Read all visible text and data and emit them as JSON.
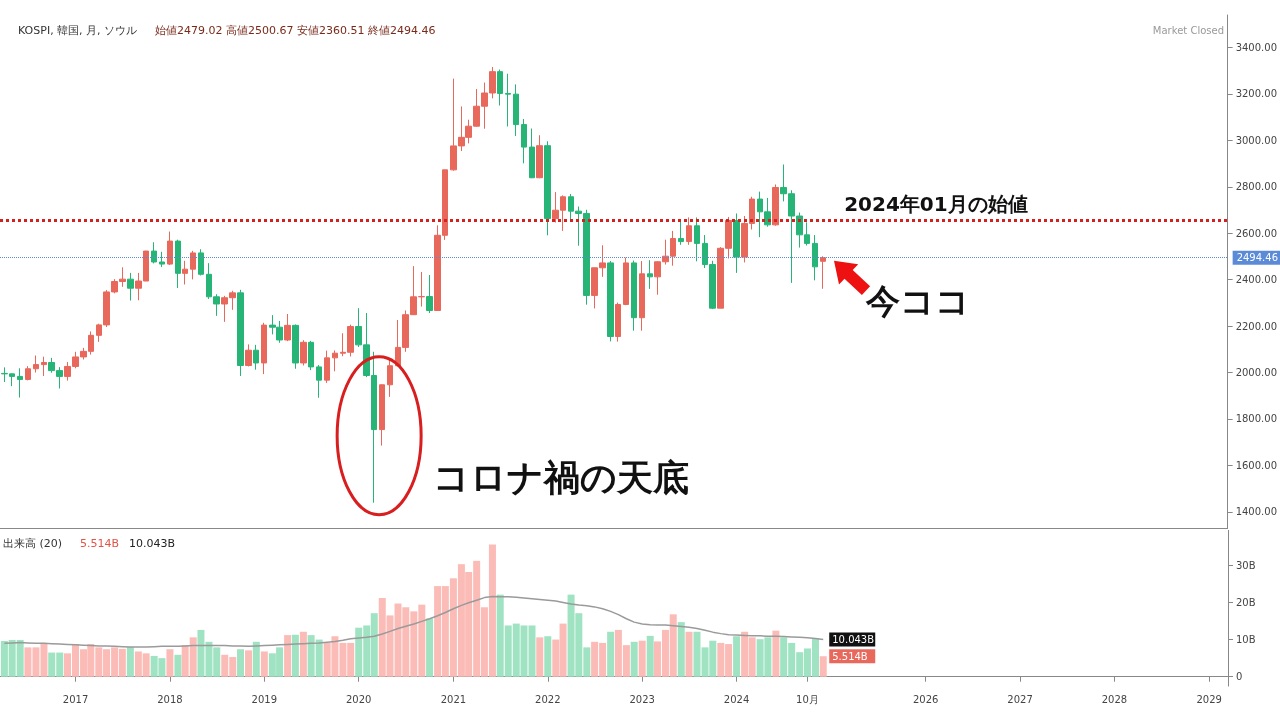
{
  "chart_data": [
    {
      "type": "candlestick",
      "title": "KOSPI, 韓国, 月, ソウル",
      "subtitle": "始値2479.02 高値2500.67 安値2360.51 終値2494.46",
      "x": [
        "2016-04",
        "2016-05",
        "2016-06",
        "2016-07",
        "2016-08",
        "2016-09",
        "2016-10",
        "2016-11",
        "2016-12",
        "2017-01",
        "2017-02",
        "2017-03",
        "2017-04",
        "2017-05",
        "2017-06",
        "2017-07",
        "2017-08",
        "2017-09",
        "2017-10",
        "2017-11",
        "2017-12",
        "2018-01",
        "2018-02",
        "2018-03",
        "2018-04",
        "2018-05",
        "2018-06",
        "2018-07",
        "2018-08",
        "2018-09",
        "2018-10",
        "2018-11",
        "2018-12",
        "2019-01",
        "2019-02",
        "2019-03",
        "2019-04",
        "2019-05",
        "2019-06",
        "2019-07",
        "2019-08",
        "2019-09",
        "2019-10",
        "2019-11",
        "2019-12",
        "2020-01",
        "2020-02",
        "2020-03",
        "2020-04",
        "2020-05",
        "2020-06",
        "2020-07",
        "2020-08",
        "2020-09",
        "2020-10",
        "2020-11",
        "2020-12",
        "2021-01",
        "2021-02",
        "2021-03",
        "2021-04",
        "2021-05",
        "2021-06",
        "2021-07",
        "2021-08",
        "2021-09",
        "2021-10",
        "2021-11",
        "2021-12",
        "2022-01",
        "2022-02",
        "2022-03",
        "2022-04",
        "2022-05",
        "2022-06",
        "2022-07",
        "2022-08",
        "2022-09",
        "2022-10",
        "2022-11",
        "2022-12",
        "2023-01",
        "2023-02",
        "2023-03",
        "2023-04",
        "2023-05",
        "2023-06",
        "2023-07",
        "2023-08",
        "2023-09",
        "2023-10",
        "2023-11",
        "2023-12",
        "2024-01",
        "2024-02",
        "2024-03",
        "2024-04",
        "2024-05",
        "2024-06",
        "2024-07",
        "2024-08",
        "2024-09",
        "2024-10",
        "2024-11",
        "2024-12"
      ],
      "ohlc": [
        [
          1996,
          2022,
          1959,
          1994
        ],
        [
          1994,
          1996,
          1941,
          1983
        ],
        [
          1983,
          2018,
          1892,
          1970
        ],
        [
          1970,
          2027,
          1966,
          2016
        ],
        [
          2016,
          2073,
          2000,
          2034
        ],
        [
          2034,
          2068,
          1985,
          2043
        ],
        [
          2043,
          2063,
          1999,
          2008
        ],
        [
          2008,
          2023,
          1931,
          1983
        ],
        [
          1983,
          2045,
          1965,
          2026
        ],
        [
          2026,
          2089,
          2018,
          2067
        ],
        [
          2067,
          2106,
          2056,
          2091
        ],
        [
          2091,
          2177,
          2077,
          2160
        ],
        [
          2160,
          2210,
          2132,
          2205
        ],
        [
          2205,
          2355,
          2196,
          2347
        ],
        [
          2347,
          2402,
          2341,
          2392
        ],
        [
          2392,
          2453,
          2369,
          2402
        ],
        [
          2402,
          2429,
          2310,
          2363
        ],
        [
          2363,
          2429,
          2311,
          2394
        ],
        [
          2394,
          2524,
          2394,
          2523
        ],
        [
          2523,
          2561,
          2470,
          2476
        ],
        [
          2476,
          2520,
          2454,
          2467
        ],
        [
          2467,
          2607,
          2463,
          2566
        ],
        [
          2566,
          2572,
          2364,
          2427
        ],
        [
          2427,
          2481,
          2379,
          2445
        ],
        [
          2445,
          2524,
          2401,
          2515
        ],
        [
          2515,
          2531,
          2418,
          2423
        ],
        [
          2423,
          2471,
          2317,
          2326
        ],
        [
          2326,
          2337,
          2244,
          2295
        ],
        [
          2295,
          2330,
          2218,
          2322
        ],
        [
          2322,
          2352,
          2270,
          2343
        ],
        [
          2343,
          2356,
          1985,
          2030
        ],
        [
          2030,
          2121,
          2026,
          2096
        ],
        [
          2096,
          2119,
          2012,
          2041
        ],
        [
          2041,
          2214,
          1993,
          2204
        ],
        [
          2204,
          2247,
          2164,
          2195
        ],
        [
          2195,
          2222,
          2128,
          2140
        ],
        [
          2140,
          2252,
          2135,
          2203
        ],
        [
          2203,
          2207,
          2016,
          2041
        ],
        [
          2041,
          2139,
          2030,
          2130
        ],
        [
          2130,
          2136,
          2010,
          2024
        ],
        [
          2024,
          2032,
          1891,
          1967
        ],
        [
          1967,
          2094,
          1955,
          2063
        ],
        [
          2063,
          2095,
          2005,
          2083
        ],
        [
          2083,
          2169,
          2070,
          2087
        ],
        [
          2087,
          2206,
          2069,
          2198
        ],
        [
          2198,
          2277,
          2110,
          2119
        ],
        [
          2119,
          2256,
          1980,
          1987
        ],
        [
          1987,
          2089,
          1439,
          1754
        ],
        [
          1754,
          1949,
          1685,
          1947
        ],
        [
          1947,
          2056,
          1895,
          2029
        ],
        [
          2029,
          2226,
          2026,
          2108
        ],
        [
          2108,
          2267,
          2089,
          2249
        ],
        [
          2249,
          2458,
          2249,
          2326
        ],
        [
          2326,
          2433,
          2284,
          2327
        ],
        [
          2327,
          2420,
          2256,
          2267
        ],
        [
          2267,
          2634,
          2267,
          2591
        ],
        [
          2591,
          2873,
          2571,
          2873
        ],
        [
          2873,
          3266,
          2869,
          2976
        ],
        [
          2976,
          3146,
          2954,
          3013
        ],
        [
          3013,
          3089,
          2987,
          3061
        ],
        [
          3061,
          3221,
          3059,
          3147
        ],
        [
          3147,
          3249,
          3050,
          3204
        ],
        [
          3204,
          3316,
          3181,
          3296
        ],
        [
          3296,
          3305,
          3150,
          3202
        ],
        [
          3202,
          3287,
          3060,
          3199
        ],
        [
          3199,
          3241,
          3019,
          3068
        ],
        [
          3068,
          3092,
          2901,
          2971
        ],
        [
          2971,
          3051,
          2837,
          2839
        ],
        [
          2839,
          3022,
          2837,
          2977
        ],
        [
          2977,
          2996,
          2591,
          2663
        ],
        [
          2663,
          2777,
          2646,
          2699
        ],
        [
          2699,
          2763,
          2610,
          2757
        ],
        [
          2757,
          2769,
          2661,
          2695
        ],
        [
          2695,
          2715,
          2546,
          2685
        ],
        [
          2685,
          2701,
          2292,
          2332
        ],
        [
          2332,
          2452,
          2276,
          2451
        ],
        [
          2451,
          2548,
          2412,
          2472
        ],
        [
          2472,
          2480,
          2134,
          2155
        ],
        [
          2155,
          2301,
          2133,
          2293
        ],
        [
          2293,
          2495,
          2290,
          2472
        ],
        [
          2472,
          2482,
          2180,
          2236
        ],
        [
          2236,
          2480,
          2180,
          2425
        ],
        [
          2425,
          2484,
          2360,
          2412
        ],
        [
          2412,
          2480,
          2335,
          2477
        ],
        [
          2477,
          2572,
          2465,
          2501
        ],
        [
          2501,
          2610,
          2460,
          2577
        ],
        [
          2577,
          2650,
          2550,
          2564
        ],
        [
          2564,
          2668,
          2550,
          2632
        ],
        [
          2632,
          2668,
          2479,
          2556
        ],
        [
          2556,
          2592,
          2450,
          2465
        ],
        [
          2465,
          2481,
          2273,
          2277
        ],
        [
          2277,
          2540,
          2277,
          2535
        ],
        [
          2535,
          2670,
          2491,
          2655
        ],
        [
          2655,
          2685,
          2429,
          2497
        ],
        [
          2497,
          2674,
          2474,
          2642
        ],
        [
          2642,
          2757,
          2616,
          2747
        ],
        [
          2747,
          2779,
          2583,
          2692
        ],
        [
          2692,
          2752,
          2628,
          2636
        ],
        [
          2636,
          2810,
          2632,
          2797
        ],
        [
          2797,
          2896,
          2737,
          2770
        ],
        [
          2770,
          2785,
          2386,
          2674
        ],
        [
          2674,
          2689,
          2538,
          2593
        ],
        [
          2593,
          2647,
          2547,
          2556
        ],
        [
          2556,
          2592,
          2397,
          2455
        ],
        [
          2479.02,
          2500.67,
          2360.51,
          2494.46
        ]
      ],
      "colors": [
        "#26b576",
        "#26b576",
        "#26b576",
        "#e8685c",
        "#e8685c",
        "#e8685c",
        "#26b576",
        "#26b576",
        "#e8685c",
        "#e8685c",
        "#e8685c",
        "#e8685c",
        "#e8685c",
        "#e8685c",
        "#e8685c",
        "#e8685c",
        "#26b576",
        "#e8685c",
        "#e8685c",
        "#26b576",
        "#26b576",
        "#e8685c",
        "#26b576",
        "#e8685c",
        "#e8685c",
        "#26b576",
        "#26b576",
        "#26b576",
        "#e8685c",
        "#e8685c",
        "#26b576",
        "#e8685c",
        "#26b576",
        "#e8685c",
        "#26b576",
        "#26b576",
        "#e8685c",
        "#26b576",
        "#e8685c",
        "#26b576",
        "#26b576",
        "#e8685c",
        "#e8685c",
        "#e8685c",
        "#e8685c",
        "#26b576",
        "#26b576",
        "#26b576",
        "#e8685c",
        "#e8685c",
        "#e8685c",
        "#e8685c",
        "#e8685c",
        "#e8685c",
        "#26b576",
        "#e8685c",
        "#e8685c",
        "#e8685c",
        "#e8685c",
        "#e8685c",
        "#e8685c",
        "#e8685c",
        "#e8685c",
        "#26b576",
        "#26b576",
        "#26b576",
        "#26b576",
        "#26b576",
        "#e8685c",
        "#26b576",
        "#e8685c",
        "#e8685c",
        "#26b576",
        "#26b576",
        "#26b576",
        "#e8685c",
        "#e8685c",
        "#26b576",
        "#e8685c",
        "#e8685c",
        "#26b576",
        "#e8685c",
        "#26b576",
        "#e8685c",
        "#e8685c",
        "#e8685c",
        "#26b576",
        "#e8685c",
        "#26b576",
        "#26b576",
        "#26b576",
        "#e8685c",
        "#e8685c",
        "#26b576",
        "#e8685c",
        "#e8685c",
        "#26b576",
        "#26b576",
        "#e8685c",
        "#26b576",
        "#26b576",
        "#26b576",
        "#26b576",
        "#26b576",
        "#e8685c"
      ],
      "xlim": [
        "2016-03-15",
        "2029-03-15"
      ],
      "ylim": [
        1330,
        3540
      ],
      "yticks": [
        {
          "value": 1400,
          "label": "1400.00"
        },
        {
          "value": 1600,
          "label": "1600.00"
        },
        {
          "value": 1800,
          "label": "1800.00"
        },
        {
          "value": 2000,
          "label": "2000.00"
        },
        {
          "value": 2200,
          "label": "2200.00"
        },
        {
          "value": 2400,
          "label": "2400.00"
        },
        {
          "value": 2600,
          "label": "2600.00"
        },
        {
          "value": 2800,
          "label": "2800.00"
        },
        {
          "value": 3000,
          "label": "3000.00"
        },
        {
          "value": 3200,
          "label": "3200.00"
        },
        {
          "value": 3400,
          "label": "3400.00"
        }
      ],
      "tick_labels": "y",
      "ref_lines": [
        {
          "axis": "y",
          "value": 2655,
          "label": "2024年01月の始値",
          "color": "#d62020",
          "line_style": "dotted"
        },
        {
          "axis": "y",
          "value": 2494.46,
          "label": "2494.46",
          "color": "#5b8bd6",
          "line_style": "dotted"
        }
      ],
      "annotations": [
        "Market Closed",
        {
          "text": "コロナ禍の天底",
          "x": "2020-03",
          "y": 1439
        },
        {
          "text": "今ココ",
          "x": "2024-12",
          "y": 2494.46
        }
      ]
    },
    {
      "type": "bar",
      "title": "出来高 (20)",
      "x": [
        "2016-04",
        "2016-05",
        "2016-06",
        "2016-07",
        "2016-08",
        "2016-09",
        "2016-10",
        "2016-11",
        "2016-12",
        "2017-01",
        "2017-02",
        "2017-03",
        "2017-04",
        "2017-05",
        "2017-06",
        "2017-07",
        "2017-08",
        "2017-09",
        "2017-10",
        "2017-11",
        "2017-12",
        "2018-01",
        "2018-02",
        "2018-03",
        "2018-04",
        "2018-05",
        "2018-06",
        "2018-07",
        "2018-08",
        "2018-09",
        "2018-10",
        "2018-11",
        "2018-12",
        "2019-01",
        "2019-02",
        "2019-03",
        "2019-04",
        "2019-05",
        "2019-06",
        "2019-07",
        "2019-08",
        "2019-09",
        "2019-10",
        "2019-11",
        "2019-12",
        "2020-01",
        "2020-02",
        "2020-03",
        "2020-04",
        "2020-05",
        "2020-06",
        "2020-07",
        "2020-08",
        "2020-09",
        "2020-10",
        "2020-11",
        "2020-12",
        "2021-01",
        "2021-02",
        "2021-03",
        "2021-04",
        "2021-05",
        "2021-06",
        "2021-07",
        "2021-08",
        "2021-09",
        "2021-10",
        "2021-11",
        "2021-12",
        "2022-01",
        "2022-02",
        "2022-03",
        "2022-04",
        "2022-05",
        "2022-06",
        "2022-07",
        "2022-08",
        "2022-09",
        "2022-10",
        "2022-11",
        "2022-12",
        "2023-01",
        "2023-02",
        "2023-03",
        "2023-04",
        "2023-05",
        "2023-06",
        "2023-07",
        "2023-08",
        "2023-09",
        "2023-10",
        "2023-11",
        "2023-12",
        "2024-01",
        "2024-02",
        "2024-03",
        "2024-04",
        "2024-05",
        "2024-06",
        "2024-07",
        "2024-08",
        "2024-09",
        "2024-10",
        "2024-11",
        "2024-12"
      ],
      "series": [
        {
          "type": "bar",
          "values": [
            9.6,
            9.9,
            9.9,
            7.9,
            7.9,
            9.1,
            6.5,
            6.5,
            6.3,
            8.8,
            7.4,
            8.8,
            7.9,
            7.4,
            7.9,
            7.5,
            8.0,
            6.8,
            6.3,
            5.6,
            5.0,
            7.4,
            5.9,
            8.5,
            10.6,
            12.6,
            9.4,
            7.9,
            5.9,
            5.3,
            7.4,
            7.1,
            9.4,
            6.8,
            6.3,
            7.9,
            11.2,
            11.3,
            12.1,
            11.2,
            10.0,
            9.1,
            10.9,
            9.1,
            9.1,
            13.2,
            13.8,
            17.1,
            21.2,
            16.5,
            19.7,
            18.7,
            17.6,
            19.4,
            15.7,
            24.4,
            24.4,
            26.5,
            30.3,
            28.2,
            31.2,
            18.7,
            35.6,
            22.1,
            13.8,
            14.3,
            13.8,
            13.8,
            10.6,
            10.9,
            10.0,
            14.3,
            22.1,
            17.1,
            7.9,
            9.4,
            9.1,
            12.1,
            12.6,
            8.5,
            9.4,
            9.7,
            11.0,
            9.5,
            12.6,
            16.8,
            14.7,
            12.1,
            12.1,
            7.9,
            9.7,
            9.1,
            8.8,
            10.9,
            12.1,
            10.6,
            10.1,
            10.6,
            12.4,
            10.6,
            9.1,
            6.6,
            7.6,
            10.3,
            5.514
          ],
          "colors": [
            "#9fe3c2",
            "#9fe3c2",
            "#9fe3c2",
            "#fbbcb7",
            "#fbbcb7",
            "#fbbcb7",
            "#9fe3c2",
            "#9fe3c2",
            "#fbbcb7",
            "#fbbcb7",
            "#fbbcb7",
            "#fbbcb7",
            "#fbbcb7",
            "#fbbcb7",
            "#fbbcb7",
            "#fbbcb7",
            "#9fe3c2",
            "#fbbcb7",
            "#fbbcb7",
            "#9fe3c2",
            "#9fe3c2",
            "#fbbcb7",
            "#9fe3c2",
            "#fbbcb7",
            "#fbbcb7",
            "#9fe3c2",
            "#9fe3c2",
            "#9fe3c2",
            "#fbbcb7",
            "#fbbcb7",
            "#9fe3c2",
            "#fbbcb7",
            "#9fe3c2",
            "#fbbcb7",
            "#9fe3c2",
            "#9fe3c2",
            "#fbbcb7",
            "#9fe3c2",
            "#fbbcb7",
            "#9fe3c2",
            "#9fe3c2",
            "#fbbcb7",
            "#fbbcb7",
            "#fbbcb7",
            "#fbbcb7",
            "#9fe3c2",
            "#9fe3c2",
            "#9fe3c2",
            "#fbbcb7",
            "#fbbcb7",
            "#fbbcb7",
            "#fbbcb7",
            "#fbbcb7",
            "#fbbcb7",
            "#9fe3c2",
            "#fbbcb7",
            "#fbbcb7",
            "#fbbcb7",
            "#fbbcb7",
            "#fbbcb7",
            "#fbbcb7",
            "#fbbcb7",
            "#fbbcb7",
            "#9fe3c2",
            "#9fe3c2",
            "#9fe3c2",
            "#9fe3c2",
            "#9fe3c2",
            "#fbbcb7",
            "#9fe3c2",
            "#fbbcb7",
            "#fbbcb7",
            "#9fe3c2",
            "#9fe3c2",
            "#9fe3c2",
            "#fbbcb7",
            "#fbbcb7",
            "#9fe3c2",
            "#fbbcb7",
            "#fbbcb7",
            "#9fe3c2",
            "#fbbcb7",
            "#9fe3c2",
            "#fbbcb7",
            "#fbbcb7",
            "#fbbcb7",
            "#9fe3c2",
            "#fbbcb7",
            "#9fe3c2",
            "#9fe3c2",
            "#9fe3c2",
            "#fbbcb7",
            "#fbbcb7",
            "#9fe3c2",
            "#fbbcb7",
            "#fbbcb7",
            "#9fe3c2",
            "#9fe3c2",
            "#fbbcb7",
            "#9fe3c2",
            "#9fe3c2",
            "#9fe3c2",
            "#9fe3c2",
            "#9fe3c2",
            "#fbbcb7"
          ]
        },
        {
          "type": "line",
          "color": "#9a9a9a",
          "values": [
            9.0,
            9.1,
            9.2,
            9.1,
            9.0,
            9.0,
            8.9,
            8.8,
            8.7,
            8.6,
            8.5,
            8.4,
            8.3,
            8.3,
            8.2,
            8.1,
            8.0,
            8.0,
            8.0,
            8.1,
            8.2,
            8.2,
            8.2,
            8.3,
            8.4,
            8.4,
            8.4,
            8.4,
            8.4,
            8.3,
            8.3,
            8.2,
            8.3,
            8.4,
            8.5,
            8.6,
            8.7,
            8.8,
            8.9,
            9.0,
            9.1,
            9.3,
            9.5,
            9.8,
            10.2,
            10.4,
            10.6,
            10.9,
            11.5,
            12.2,
            13.0,
            13.6,
            14.2,
            14.9,
            15.6,
            16.4,
            17.3,
            18.3,
            19.2,
            19.9,
            20.6,
            21.3,
            21.6,
            21.5,
            21.5,
            21.4,
            21.2,
            21.0,
            20.8,
            20.6,
            20.4,
            20.0,
            19.6,
            19.3,
            19.1,
            18.8,
            18.3,
            17.6,
            16.7,
            15.6,
            14.7,
            14.2,
            14.0,
            13.9,
            13.9,
            13.7,
            13.5,
            13.3,
            13.0,
            12.5,
            12.0,
            11.6,
            11.3,
            11.2,
            11.1,
            11.0,
            11.0,
            10.9,
            10.9,
            10.8,
            10.7,
            10.6,
            10.5,
            10.3,
            10.043
          ]
        }
      ],
      "marker": "none",
      "xlim": [
        "2016-03-15",
        "2029-03-15"
      ],
      "xticks": [
        "2017",
        "2018",
        "2019",
        "2020",
        "2021",
        "2022",
        "2023",
        {
          "value": "2024-10",
          "label": "10月"
        },
        "2024",
        "2026",
        "2027",
        "2028",
        "2029"
      ],
      "ylim": [
        -2.5,
        39.5
      ],
      "yticks": [
        0,
        {
          "value": 10,
          "label": "10B"
        },
        {
          "value": 20,
          "label": "20B"
        },
        {
          "value": 30,
          "label": "30B"
        }
      ],
      "annotations": [
        "5.514B",
        "10.043B",
        {
          "text": "10.043B",
          "x": "2024-12",
          "y": 10.043
        },
        {
          "text": "5.514B",
          "x": "2024-12",
          "y": 5.514
        }
      ]
    }
  ]
}
